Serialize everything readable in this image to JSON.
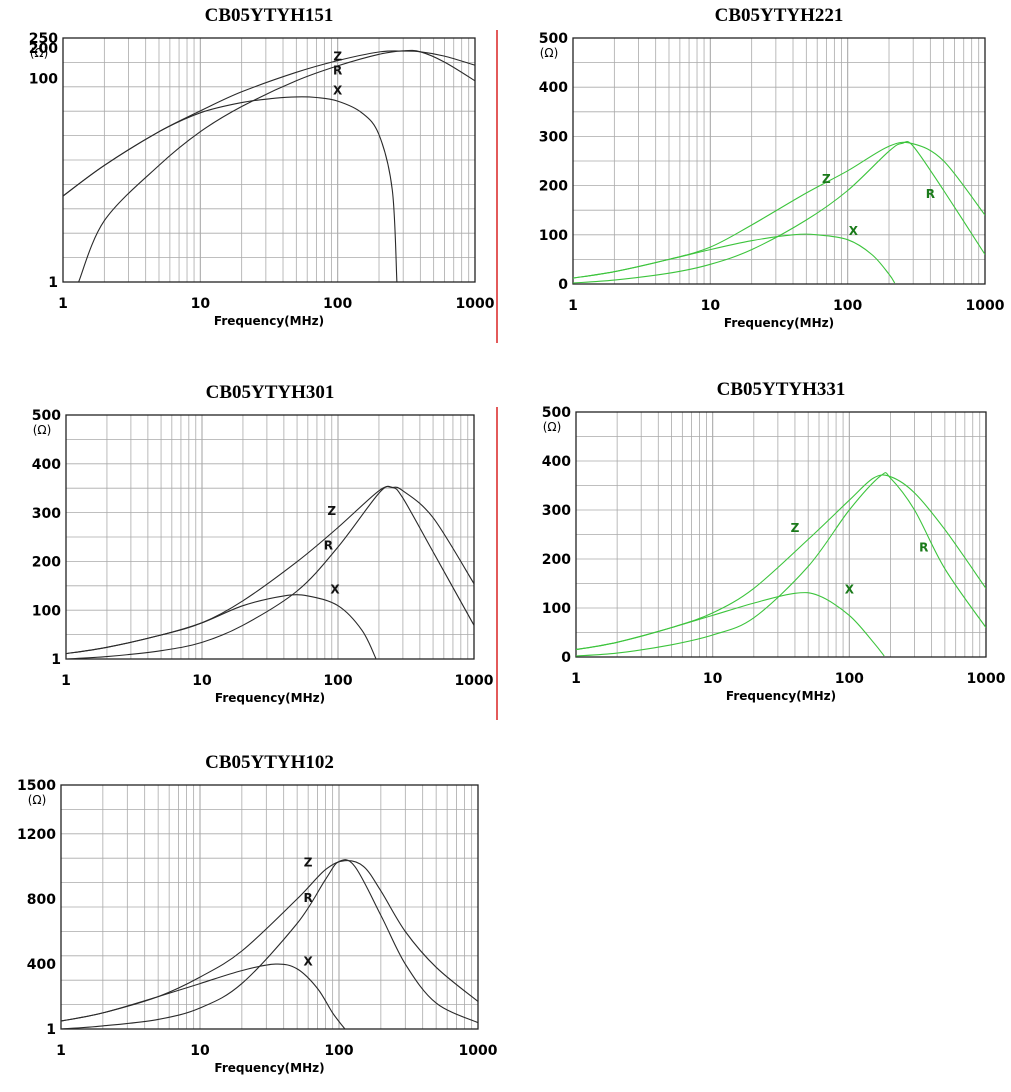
{
  "colors": {
    "grid": "#aaaaaa",
    "frame": "#222222",
    "black_curve": "#2a2a2a",
    "green_curve": "#3cc43c",
    "green_label": "#1a7a1a",
    "separator": "#e35a5a"
  },
  "chart_data": [
    {
      "type": "line",
      "title": "CB05YTYH151",
      "xlabel": "Frequency(MHz)",
      "yunit": "(Ω)",
      "xscale": "log",
      "xlim": [
        1,
        1000
      ],
      "xticks": [
        "1",
        "10",
        "100",
        "1000"
      ],
      "ylim": [
        1,
        250
      ],
      "yticks": [
        {
          "value": 1,
          "label": "1"
        },
        {
          "value": 100,
          "label": "100"
        },
        {
          "value": 200,
          "label": "200"
        },
        {
          "value": 250,
          "label": "250"
        }
      ],
      "grid": true,
      "legend": "inline",
      "curve_color": "black",
      "series": [
        {
          "name": "Z",
          "x": [
            1,
            2,
            5,
            10,
            20,
            50,
            100,
            200,
            300,
            400,
            600,
            1000
          ],
          "y": [
            7,
            14,
            30,
            48,
            74,
            115,
            150,
            182,
            186,
            183,
            166,
            135
          ]
        },
        {
          "name": "R",
          "x": [
            1.3,
            2,
            5,
            10,
            20,
            50,
            100,
            200,
            300,
            400,
            600,
            1000
          ],
          "y": [
            1,
            4,
            14,
            30,
            53,
            95,
            133,
            173,
            187,
            183,
            145,
            95
          ]
        },
        {
          "name": "X",
          "x": [
            1,
            2,
            5,
            10,
            20,
            35,
            50,
            70,
            100,
            150,
            200,
            250,
            270
          ],
          "y": [
            7,
            14,
            30,
            46,
            58,
            64,
            66,
            65,
            60,
            46,
            28,
            8,
            1
          ]
        }
      ]
    },
    {
      "type": "line",
      "title": "CB05YTYH221",
      "xlabel": "Frequency(MHz)",
      "yunit": "(Ω)",
      "xscale": "log",
      "xlim": [
        1,
        1000
      ],
      "xticks": [
        "1",
        "10",
        "100",
        "1000"
      ],
      "ylim": [
        0,
        500
      ],
      "yticks": [
        {
          "value": 0,
          "label": "0"
        },
        {
          "value": 100,
          "label": "100"
        },
        {
          "value": 200,
          "label": "200"
        },
        {
          "value": 300,
          "label": "300"
        },
        {
          "value": 400,
          "label": "400"
        },
        {
          "value": 500,
          "label": "500"
        }
      ],
      "grid": true,
      "legend": "inline",
      "curve_color": "green",
      "series": [
        {
          "name": "Z",
          "x": [
            1,
            2,
            5,
            10,
            20,
            50,
            100,
            200,
            300,
            500,
            1000
          ],
          "y": [
            12,
            25,
            50,
            75,
            120,
            185,
            230,
            280,
            285,
            250,
            140
          ]
        },
        {
          "name": "R",
          "x": [
            1,
            2,
            5,
            10,
            20,
            50,
            100,
            200,
            250,
            300,
            500,
            1000
          ],
          "y": [
            2,
            8,
            22,
            40,
            70,
            130,
            190,
            270,
            286,
            280,
            190,
            60
          ]
        },
        {
          "name": "X",
          "x": [
            1,
            2,
            5,
            10,
            20,
            40,
            60,
            100,
            150,
            200,
            220
          ],
          "y": [
            12,
            25,
            50,
            70,
            88,
            100,
            100,
            90,
            60,
            20,
            2
          ]
        }
      ]
    },
    {
      "type": "line",
      "title": "CB05YTYH301",
      "xlabel": "Frequency(MHz)",
      "yunit": "(Ω)",
      "xscale": "log",
      "xlim": [
        1,
        1000
      ],
      "xticks": [
        "1",
        "10",
        "100",
        "1000"
      ],
      "ylim": [
        1,
        500
      ],
      "yticks": [
        {
          "value": 1,
          "label": "1"
        },
        {
          "value": 100,
          "label": "100"
        },
        {
          "value": 200,
          "label": "200"
        },
        {
          "value": 300,
          "label": "300"
        },
        {
          "value": 400,
          "label": "400"
        },
        {
          "value": 500,
          "label": "500"
        }
      ],
      "grid": true,
      "legend": "inline",
      "curve_color": "black",
      "series": [
        {
          "name": "Z",
          "x": [
            1,
            2,
            5,
            10,
            20,
            50,
            100,
            200,
            250,
            300,
            500,
            1000
          ],
          "y": [
            12,
            25,
            50,
            75,
            120,
            200,
            270,
            345,
            352,
            345,
            290,
            155
          ]
        },
        {
          "name": "R",
          "x": [
            1,
            2,
            5,
            10,
            20,
            50,
            100,
            200,
            250,
            300,
            500,
            1000
          ],
          "y": [
            1,
            6,
            18,
            35,
            70,
            140,
            230,
            340,
            352,
            330,
            220,
            70
          ]
        },
        {
          "name": "X",
          "x": [
            1,
            2,
            5,
            10,
            20,
            40,
            60,
            100,
            150,
            190
          ],
          "y": [
            12,
            25,
            50,
            75,
            110,
            130,
            130,
            110,
            60,
            2
          ]
        }
      ]
    },
    {
      "type": "line",
      "title": "CB05YTYH331",
      "xlabel": "Frequency(MHz)",
      "yunit": "(Ω)",
      "xscale": "log",
      "xlim": [
        1,
        1000
      ],
      "xticks": [
        "1",
        "10",
        "100",
        "1000"
      ],
      "ylim": [
        0,
        500
      ],
      "yticks": [
        {
          "value": 0,
          "label": "0"
        },
        {
          "value": 100,
          "label": "100"
        },
        {
          "value": 200,
          "label": "200"
        },
        {
          "value": 300,
          "label": "300"
        },
        {
          "value": 400,
          "label": "400"
        },
        {
          "value": 500,
          "label": "500"
        }
      ],
      "grid": true,
      "legend": "inline",
      "curve_color": "green",
      "series": [
        {
          "name": "Z",
          "x": [
            1,
            2,
            5,
            10,
            20,
            50,
            100,
            150,
            200,
            300,
            500,
            1000
          ],
          "y": [
            15,
            30,
            60,
            90,
            140,
            240,
            320,
            365,
            368,
            335,
            260,
            140
          ]
        },
        {
          "name": "R",
          "x": [
            1,
            2,
            5,
            10,
            20,
            50,
            100,
            170,
            200,
            300,
            500,
            1000
          ],
          "y": [
            2,
            8,
            25,
            45,
            80,
            185,
            300,
            370,
            365,
            300,
            180,
            60
          ]
        },
        {
          "name": "X",
          "x": [
            1,
            2,
            5,
            10,
            20,
            40,
            60,
            100,
            150,
            180
          ],
          "y": [
            15,
            30,
            60,
            85,
            110,
            130,
            125,
            85,
            30,
            2
          ]
        }
      ]
    },
    {
      "type": "line",
      "title": "CB05YTYH102",
      "xlabel": "Frequency(MHz)",
      "yunit": "(Ω)",
      "xscale": "log",
      "xlim": [
        1,
        1000
      ],
      "xticks": [
        "1",
        "10",
        "100",
        "1000"
      ],
      "ylim": [
        1,
        1500
      ],
      "yticks": [
        {
          "value": 1,
          "label": "1"
        },
        {
          "value": 400,
          "label": "400"
        },
        {
          "value": 800,
          "label": "800"
        },
        {
          "value": 1200,
          "label": "1200"
        },
        {
          "value": 1500,
          "label": "1500"
        }
      ],
      "grid": true,
      "legend": "inline",
      "curve_color": "black",
      "series": [
        {
          "name": "Z",
          "x": [
            1,
            2,
            5,
            10,
            20,
            50,
            80,
            110,
            150,
            200,
            300,
            500,
            1000
          ],
          "y": [
            50,
            100,
            200,
            320,
            480,
            800,
            980,
            1035,
            1000,
            850,
            600,
            380,
            170
          ]
        },
        {
          "name": "R",
          "x": [
            1,
            2,
            5,
            10,
            20,
            50,
            80,
            100,
            130,
            200,
            300,
            500,
            1000
          ],
          "y": [
            1,
            20,
            60,
            130,
            280,
            650,
            920,
            1030,
            1000,
            700,
            400,
            160,
            40
          ]
        },
        {
          "name": "X",
          "x": [
            1,
            2,
            5,
            10,
            20,
            35,
            50,
            70,
            90,
            110
          ],
          "y": [
            50,
            100,
            200,
            280,
            360,
            400,
            370,
            250,
            100,
            2
          ]
        }
      ]
    }
  ]
}
